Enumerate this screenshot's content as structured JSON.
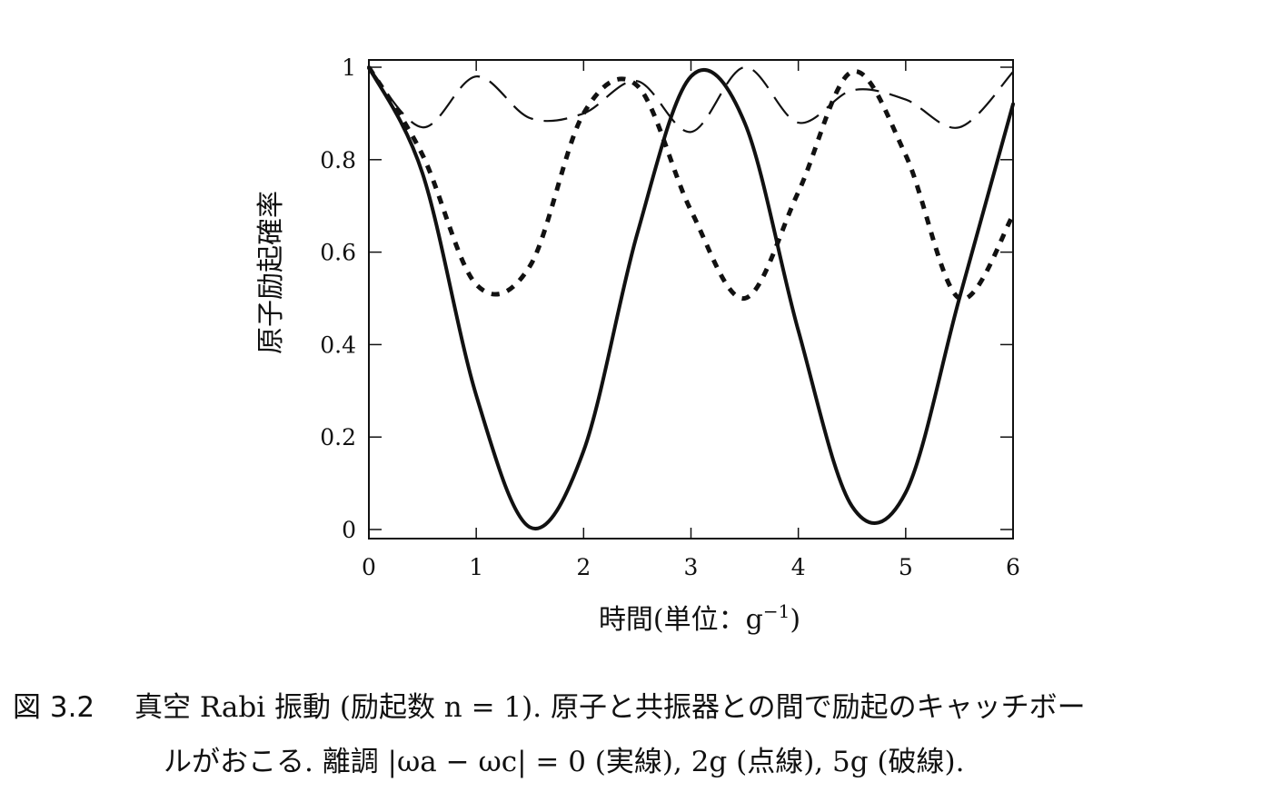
{
  "chart_data": {
    "type": "line",
    "title": "",
    "xlabel": "時間(単位：g",
    "xlabel_sup": "−1",
    "xlabel_close": ")",
    "ylabel": "原子励起確率",
    "xlim": [
      0,
      6
    ],
    "ylim": [
      0,
      1
    ],
    "x_ticks": [
      "0",
      "1",
      "2",
      "3",
      "4",
      "5",
      "6"
    ],
    "y_ticks": [
      "0",
      "0.2",
      "0.4",
      "0.6",
      "0.8",
      "1"
    ],
    "grid": false,
    "legend": "none",
    "x": [
      0,
      0.5,
      1.0,
      1.5,
      2.0,
      2.5,
      3.0,
      3.5,
      4.0,
      4.5,
      5.0,
      5.5,
      6.0
    ],
    "series": [
      {
        "style": "solid",
        "detuning": "0",
        "values": [
          1.0,
          0.77,
          0.29,
          0.005,
          0.17,
          0.64,
          0.98,
          0.88,
          0.43,
          0.05,
          0.08,
          0.5,
          0.92
        ]
      },
      {
        "style": "dotted",
        "detuning": "2g",
        "values": [
          1.0,
          0.81,
          0.53,
          0.57,
          0.9,
          0.96,
          0.69,
          0.5,
          0.73,
          0.99,
          0.81,
          0.5,
          0.68
        ]
      },
      {
        "style": "dashed",
        "detuning": "5g",
        "values": [
          1.0,
          0.87,
          0.98,
          0.89,
          0.9,
          0.97,
          0.86,
          1.0,
          0.88,
          0.95,
          0.93,
          0.87,
          0.99
        ]
      }
    ]
  },
  "caption": {
    "figure_number": "図 3.2",
    "line1": "真空 Rabi 振動 (励起数 n = 1). 原子と共振器との間で励起のキャッチボー",
    "line2": "ルがおこる. 離調 |ωa − ωc| = 0 (実線), 2g (点線), 5g (破線)."
  }
}
